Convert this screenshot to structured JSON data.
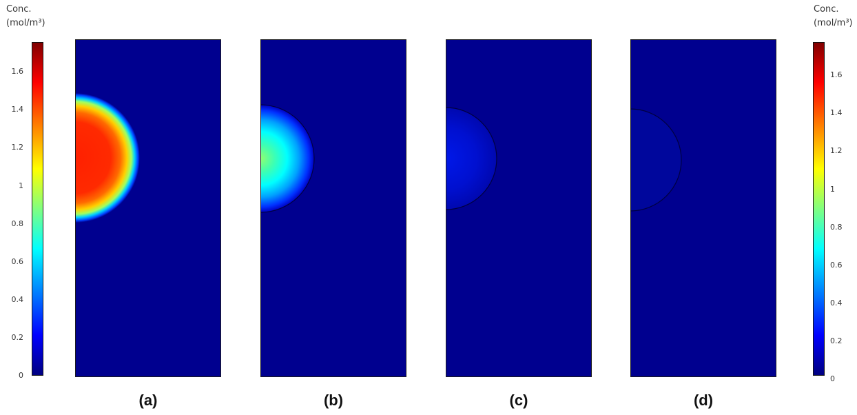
{
  "colorbar_left": {
    "title_line1": "Conc.",
    "title_line2": "(mol/m³)",
    "ticks": [
      "1.6",
      "1.4",
      "1.2",
      "1",
      "0.8",
      "0.6",
      "0.4",
      "0.2",
      "0"
    ]
  },
  "colorbar_right": {
    "title_line1": "Conc.",
    "title_line2": "(mol/m³)",
    "ticks": [
      "1.6",
      "1.4",
      "1.2",
      "1",
      "0.8",
      "0.6",
      "0.4",
      "0.2",
      "0"
    ]
  },
  "colorscale": {
    "min": 0,
    "max": 1.75,
    "stops": [
      "#000080",
      "#0000ff",
      "#0080ff",
      "#00ffff",
      "#80ff80",
      "#ffff00",
      "#ff8000",
      "#ff0000",
      "#800000"
    ]
  },
  "panels": [
    {
      "caption": "(a)",
      "background": "#00008f",
      "peak_concentration": 1.45,
      "blob_outline": false
    },
    {
      "caption": "(b)",
      "background": "#00008f",
      "peak_concentration": 0.95,
      "blob_outline": true
    },
    {
      "caption": "(c)",
      "background": "#00008f",
      "peak_concentration": 0.2,
      "blob_outline": true
    },
    {
      "caption": "(d)",
      "background": "#00008f",
      "peak_concentration": 0.08,
      "blob_outline": true
    }
  ]
}
